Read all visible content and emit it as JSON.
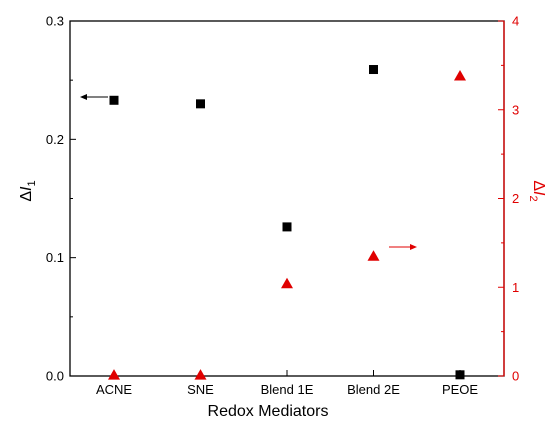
{
  "chart_data": {
    "type": "scatter",
    "xlabel": "Redox Mediators",
    "categories": [
      "ACNE",
      "SNE",
      "Blend 1E",
      "Blend 2E",
      "PEOE"
    ],
    "y_left": {
      "label_prefix": "Δ",
      "label_var": "I",
      "label_sub": "1",
      "range": [
        0,
        0.3
      ],
      "ticks": [
        "0.0",
        "0.1",
        "0.2",
        "0.3"
      ],
      "color": "#000000"
    },
    "y_right": {
      "label_prefix": "Δ",
      "label_var": "I",
      "label_sub": "2",
      "range": [
        0,
        4
      ],
      "ticks": [
        "0",
        "1",
        "2",
        "3",
        "4"
      ],
      "color": "#e00000"
    },
    "series": [
      {
        "marker": "square",
        "axis": "left",
        "color": "#000000",
        "values": [
          0.233,
          0.23,
          0.126,
          0.259,
          0.001
        ]
      },
      {
        "marker": "triangle",
        "axis": "right",
        "color": "#e00000",
        "values": [
          0.01,
          0.01,
          1.04,
          1.35,
          3.38
        ]
      }
    ],
    "grid": false,
    "legend": "none"
  }
}
